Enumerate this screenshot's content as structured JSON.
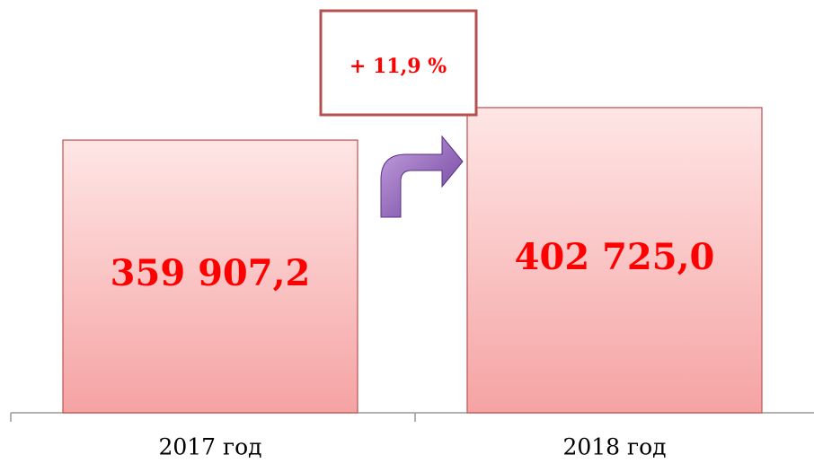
{
  "chart_data": {
    "type": "bar",
    "categories": [
      "2017 год",
      "2018 год"
    ],
    "values": [
      359907.2,
      402725.0
    ],
    "value_labels": [
      "359 907,2",
      "402 725,0"
    ],
    "color": "#f5a3a3",
    "ylim": [
      0,
      450000
    ],
    "annotation": "+ 11,9 %"
  }
}
